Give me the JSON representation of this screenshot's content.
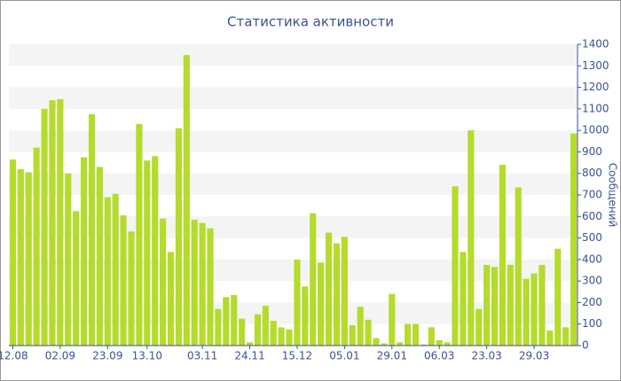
{
  "chart_data": {
    "type": "bar",
    "title": "Статистика активности",
    "y_label": "Сообщений",
    "categories": [
      "12.08",
      null,
      null,
      null,
      null,
      null,
      "02.09",
      null,
      null,
      null,
      null,
      null,
      "23.09",
      null,
      null,
      null,
      null,
      "13.10",
      null,
      null,
      null,
      null,
      null,
      null,
      "03.11",
      null,
      null,
      null,
      null,
      null,
      "24.11",
      null,
      null,
      null,
      null,
      null,
      "15.12",
      null,
      null,
      null,
      null,
      null,
      "05.01",
      null,
      null,
      null,
      null,
      null,
      "29.01",
      null,
      null,
      null,
      null,
      null,
      "06.03",
      null,
      null,
      null,
      null,
      null,
      "23.03",
      null,
      null,
      null,
      null,
      null,
      "29.03",
      null,
      null,
      null,
      null,
      null
    ],
    "values": [
      865,
      820,
      805,
      920,
      1100,
      1140,
      1145,
      800,
      625,
      875,
      1075,
      830,
      690,
      705,
      605,
      530,
      1030,
      860,
      880,
      590,
      435,
      1010,
      1350,
      585,
      570,
      545,
      170,
      225,
      235,
      125,
      15,
      145,
      185,
      115,
      85,
      75,
      400,
      275,
      615,
      385,
      525,
      475,
      505,
      95,
      180,
      120,
      35,
      10,
      240,
      15,
      100,
      100,
      5,
      85,
      25,
      15,
      740,
      435,
      1000,
      170,
      375,
      365,
      840,
      375,
      735,
      310,
      335,
      375,
      70,
      450,
      85,
      985
    ],
    "color": "#b5db2b",
    "ylim": [
      0,
      1400
    ],
    "yticks": [
      0,
      100,
      200,
      300,
      400,
      500,
      600,
      700,
      800,
      900,
      1000,
      1100,
      1200,
      1300,
      1400
    ],
    "grid": true
  }
}
